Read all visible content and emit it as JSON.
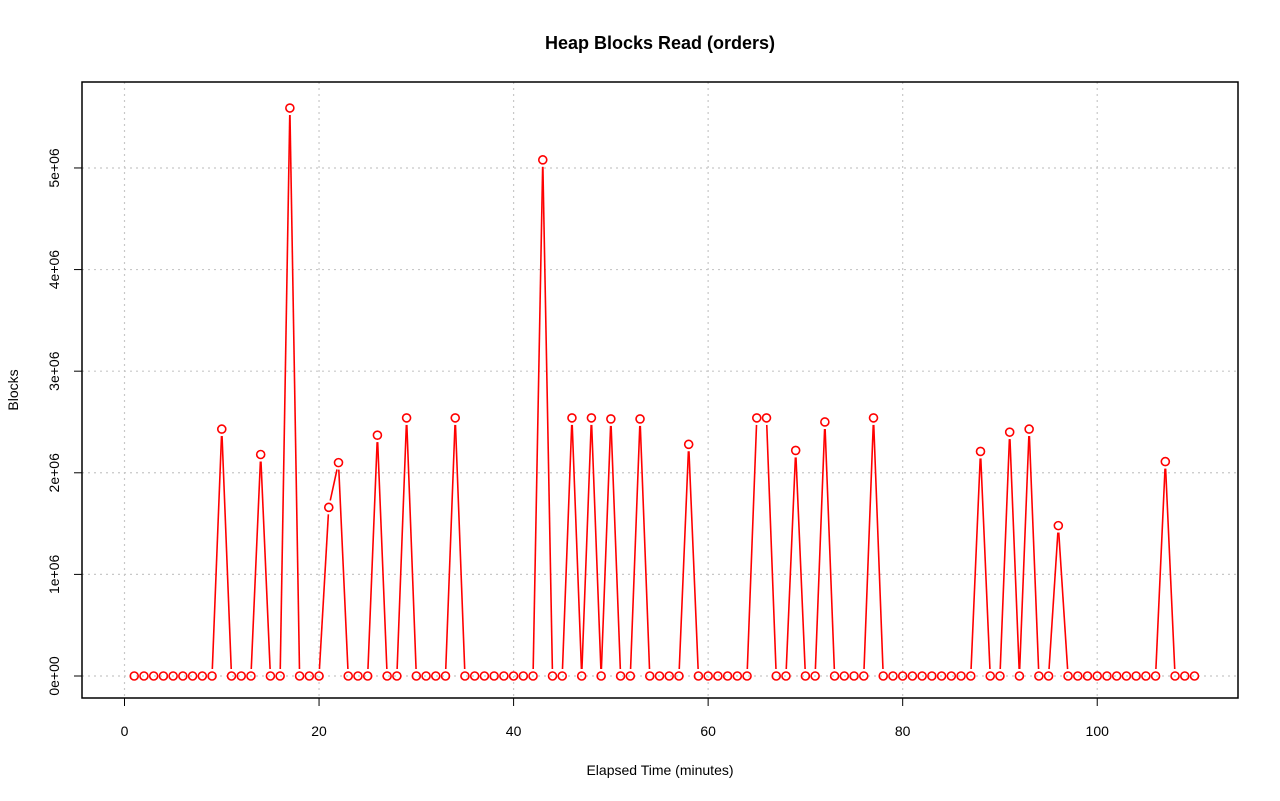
{
  "chart_data": {
    "type": "line",
    "title": "Heap Blocks Read (orders)",
    "xlabel": "Elapsed Time (minutes)",
    "ylabel": "Blocks",
    "xlim": [
      0,
      110
    ],
    "ylim": [
      0,
      5600000
    ],
    "xticks": [
      0,
      20,
      40,
      60,
      80,
      100
    ],
    "xtick_labels": [
      "0",
      "20",
      "40",
      "60",
      "80",
      "100"
    ],
    "yticks": [
      0,
      1000000,
      2000000,
      3000000,
      4000000,
      5000000
    ],
    "ytick_labels": [
      "0e+00",
      "1e+06",
      "2e+06",
      "3e+06",
      "4e+06",
      "5e+06"
    ],
    "grid": true,
    "color": "#ff0000",
    "series": [
      {
        "x": [
          1,
          2,
          3,
          4,
          5,
          6,
          7,
          8,
          9,
          10,
          11,
          12,
          13,
          14,
          15,
          16,
          17,
          18,
          19,
          20,
          21,
          22,
          23,
          24,
          25,
          26,
          27,
          28,
          29,
          30,
          31,
          32,
          33,
          34,
          35,
          36,
          37,
          38,
          39,
          40,
          41,
          42,
          43,
          44,
          45,
          46,
          47,
          48,
          49,
          50,
          51,
          52,
          53,
          54,
          55,
          56,
          57,
          58,
          59,
          60,
          61,
          62,
          63,
          64,
          65,
          66,
          67,
          68,
          69,
          70,
          71,
          72,
          73,
          74,
          75,
          76,
          77,
          78,
          79,
          80,
          81,
          82,
          83,
          84,
          85,
          86,
          87,
          88,
          89,
          90,
          91,
          92,
          93,
          94,
          95,
          96,
          97,
          98,
          99,
          100,
          101,
          102,
          103,
          104,
          105,
          106,
          107,
          108,
          109,
          110
        ],
        "y": [
          0,
          0,
          0,
          0,
          0,
          0,
          0,
          0,
          0,
          2430000,
          0,
          0,
          0,
          2180000,
          0,
          0,
          5590000,
          0,
          0,
          0,
          1660000,
          2100000,
          0,
          0,
          0,
          2370000,
          0,
          0,
          2540000,
          0,
          0,
          0,
          0,
          2540000,
          0,
          0,
          0,
          0,
          0,
          0,
          0,
          0,
          5080000,
          0,
          0,
          2540000,
          0,
          2540000,
          0,
          2530000,
          0,
          0,
          2530000,
          0,
          0,
          0,
          0,
          2280000,
          0,
          0,
          0,
          0,
          0,
          0,
          2540000,
          2540000,
          0,
          0,
          2220000,
          0,
          0,
          2500000,
          0,
          0,
          0,
          0,
          2540000,
          0,
          0,
          0,
          0,
          0,
          0,
          0,
          0,
          0,
          0,
          2210000,
          0,
          0,
          2400000,
          0,
          2430000,
          0,
          0,
          1480000,
          0,
          0,
          0,
          0,
          0,
          0,
          0,
          0,
          0,
          0,
          2110000,
          0,
          0,
          0
        ]
      }
    ]
  }
}
